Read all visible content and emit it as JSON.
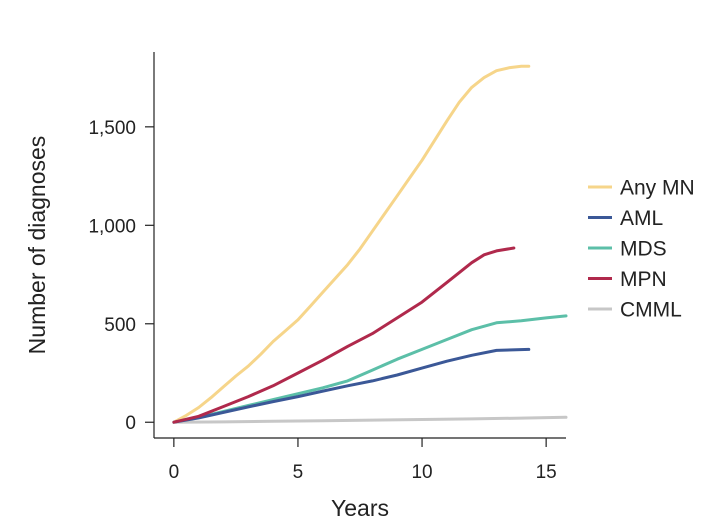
{
  "chart_data": {
    "type": "line",
    "xlabel": "Years",
    "ylabel": "Number of diagnoses",
    "xlim": [
      -0.8,
      15.8
    ],
    "ylim": [
      -80,
      1880
    ],
    "xticks": [
      0,
      5,
      10,
      15
    ],
    "xtick_labels": [
      "0",
      "5",
      "10",
      "15"
    ],
    "yticks": [
      0,
      500,
      1000,
      1500
    ],
    "ytick_labels": [
      "0",
      "500",
      "1,000",
      "1,500"
    ],
    "grid": false,
    "legend_position": "right",
    "series": [
      {
        "name": "Any MN",
        "color": "#f6d58a",
        "x": [
          0,
          0.5,
          1,
          1.5,
          2,
          2.5,
          3,
          3.5,
          4,
          4.5,
          5,
          5.5,
          6,
          6.5,
          7,
          7.5,
          8,
          8.5,
          9,
          9.5,
          10,
          10.5,
          11,
          11.5,
          12,
          12.5,
          13,
          13.5,
          14,
          14.3
        ],
        "y": [
          0,
          35,
          75,
          125,
          180,
          235,
          285,
          345,
          410,
          465,
          520,
          590,
          660,
          730,
          800,
          880,
          970,
          1060,
          1150,
          1240,
          1330,
          1430,
          1530,
          1625,
          1700,
          1750,
          1785,
          1800,
          1808,
          1808
        ]
      },
      {
        "name": "AML",
        "color": "#3b5897",
        "x": [
          0,
          1,
          2,
          3,
          4,
          5,
          6,
          7,
          8,
          9,
          10,
          11,
          12,
          13,
          14.3
        ],
        "y": [
          0,
          22,
          50,
          78,
          105,
          130,
          158,
          185,
          210,
          240,
          275,
          310,
          340,
          365,
          370
        ]
      },
      {
        "name": "MDS",
        "color": "#5cbfa8",
        "x": [
          0,
          1,
          2,
          3,
          4,
          5,
          6,
          7,
          8,
          9,
          10,
          11,
          12,
          13,
          14,
          15,
          15.8
        ],
        "y": [
          0,
          25,
          55,
          85,
          115,
          145,
          175,
          210,
          265,
          320,
          370,
          420,
          470,
          505,
          515,
          530,
          540
        ]
      },
      {
        "name": "MPN",
        "color": "#b0294c",
        "x": [
          0,
          1,
          2,
          3,
          4,
          5,
          6,
          7,
          8,
          9,
          10,
          11,
          12,
          12.5,
          13,
          13.7
        ],
        "y": [
          0,
          30,
          80,
          130,
          185,
          250,
          315,
          385,
          450,
          530,
          610,
          710,
          810,
          850,
          870,
          885
        ]
      },
      {
        "name": "CMML",
        "color": "#c7c7c7",
        "x": [
          0,
          2,
          4,
          6,
          8,
          10,
          12,
          14,
          15.8
        ],
        "y": [
          0,
          2,
          5,
          8,
          11,
          14,
          17,
          21,
          25
        ]
      }
    ]
  }
}
